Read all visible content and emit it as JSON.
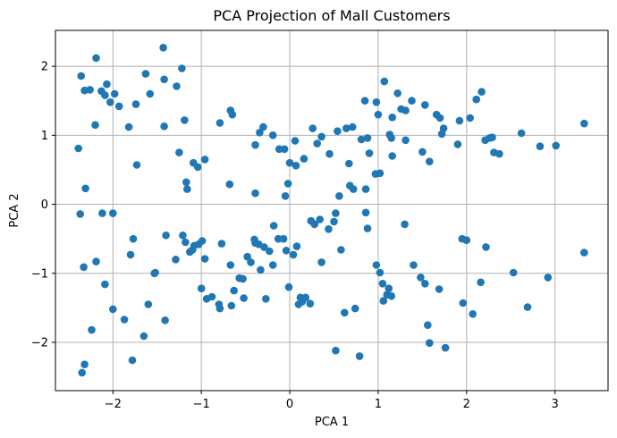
{
  "chart_data": {
    "type": "scatter",
    "title": "PCA Projection of Mall Customers",
    "xlabel": "PCA 1",
    "ylabel": "PCA 2",
    "xlim": [
      -2.65,
      3.6
    ],
    "ylim": [
      -2.7,
      2.52
    ],
    "xticks": [
      -2,
      -1,
      0,
      1,
      2,
      3
    ],
    "yticks": [
      -2,
      -1,
      0,
      1,
      2
    ],
    "xtick_labels": [
      "−2",
      "−1",
      "0",
      "1",
      "2",
      "3"
    ],
    "ytick_labels": [
      "−2",
      "−1",
      "0",
      "1",
      "2"
    ],
    "grid": true,
    "marker_color": "#1f77b4",
    "points": [
      [
        -2.36,
        1.86
      ],
      [
        -2.32,
        1.65
      ],
      [
        -2.26,
        1.66
      ],
      [
        -2.19,
        2.12
      ],
      [
        -2.13,
        1.64
      ],
      [
        -2.09,
        1.58
      ],
      [
        -2.07,
        1.74
      ],
      [
        -2.03,
        1.48
      ],
      [
        -1.98,
        1.6
      ],
      [
        -1.93,
        1.42
      ],
      [
        -1.82,
        1.12
      ],
      [
        -1.74,
        1.45
      ],
      [
        -1.63,
        1.89
      ],
      [
        -1.58,
        1.6
      ],
      [
        -1.43,
        2.27
      ],
      [
        -1.42,
        1.81
      ],
      [
        -1.28,
        1.71
      ],
      [
        -1.22,
        1.97
      ],
      [
        -2.39,
        0.81
      ],
      [
        -2.2,
        1.15
      ],
      [
        -1.73,
        0.57
      ],
      [
        -1.42,
        1.13
      ],
      [
        -1.25,
        0.75
      ],
      [
        -1.19,
        1.22
      ],
      [
        -1.17,
        0.32
      ],
      [
        -1.16,
        0.22
      ],
      [
        -1.09,
        0.6
      ],
      [
        -1.04,
        0.54
      ],
      [
        -0.96,
        0.65
      ],
      [
        -0.79,
        1.18
      ],
      [
        -0.67,
        1.36
      ],
      [
        -0.65,
        1.3
      ],
      [
        -0.68,
        0.29
      ],
      [
        -0.39,
        0.86
      ],
      [
        -0.34,
        1.04
      ],
      [
        -0.3,
        1.12
      ],
      [
        -0.39,
        0.16
      ],
      [
        -0.19,
        1.0
      ],
      [
        -0.12,
        0.8
      ],
      [
        -0.06,
        0.8
      ],
      [
        0.06,
        0.92
      ],
      [
        0.0,
        0.6
      ],
      [
        -0.02,
        0.3
      ],
      [
        0.07,
        0.56
      ],
      [
        0.16,
        0.66
      ],
      [
        -0.05,
        0.12
      ],
      [
        0.26,
        1.1
      ],
      [
        0.31,
        0.88
      ],
      [
        0.36,
        0.98
      ],
      [
        0.45,
        0.73
      ],
      [
        0.54,
        1.06
      ],
      [
        0.64,
        1.1
      ],
      [
        0.71,
        1.12
      ],
      [
        0.81,
        0.94
      ],
      [
        0.88,
        0.96
      ],
      [
        0.9,
        0.74
      ],
      [
        0.97,
        0.44
      ],
      [
        0.98,
        1.48
      ],
      [
        1.07,
        1.78
      ],
      [
        1.0,
        1.3
      ],
      [
        1.13,
        1.01
      ],
      [
        1.16,
        1.26
      ],
      [
        1.22,
        1.61
      ],
      [
        1.26,
        1.38
      ],
      [
        1.31,
        1.36
      ],
      [
        1.38,
        1.5
      ],
      [
        1.53,
        1.44
      ],
      [
        1.66,
        1.3
      ],
      [
        1.7,
        1.25
      ],
      [
        1.72,
        1.02
      ],
      [
        1.74,
        1.1
      ],
      [
        1.58,
        0.62
      ],
      [
        1.5,
        0.76
      ],
      [
        1.31,
        0.93
      ],
      [
        1.15,
        0.96
      ],
      [
        1.16,
        0.7
      ],
      [
        1.02,
        0.45
      ],
      [
        0.85,
        1.5
      ],
      [
        0.68,
        0.27
      ],
      [
        0.56,
        0.12
      ],
      [
        0.67,
        0.59
      ],
      [
        0.72,
        0.22
      ],
      [
        0.86,
        0.22
      ],
      [
        1.92,
        1.21
      ],
      [
        2.04,
        1.25
      ],
      [
        2.11,
        1.52
      ],
      [
        2.17,
        1.63
      ],
      [
        2.21,
        0.93
      ],
      [
        2.26,
        0.96
      ],
      [
        2.29,
        0.97
      ],
      [
        2.31,
        0.75
      ],
      [
        2.62,
        1.03
      ],
      [
        2.83,
        0.84
      ],
      [
        3.01,
        0.85
      ],
      [
        3.33,
        1.17
      ],
      [
        2.37,
        0.73
      ],
      [
        1.9,
        0.87
      ],
      [
        -2.37,
        -0.14
      ],
      [
        -2.31,
        0.23
      ],
      [
        -2.33,
        -0.91
      ],
      [
        -2.19,
        -0.83
      ],
      [
        -2.12,
        -0.13
      ],
      [
        -2.09,
        -1.16
      ],
      [
        -2.0,
        -0.13
      ],
      [
        -2.0,
        -1.52
      ],
      [
        -1.87,
        -1.67
      ],
      [
        -1.77,
        -0.5
      ],
      [
        -1.8,
        -0.73
      ],
      [
        -1.78,
        -2.26
      ],
      [
        -1.65,
        -1.91
      ],
      [
        -1.6,
        -1.45
      ],
      [
        -1.53,
        -1.0
      ],
      [
        -1.4,
        -0.45
      ],
      [
        -1.41,
        -1.68
      ],
      [
        -1.29,
        -0.8
      ],
      [
        -1.21,
        -0.45
      ],
      [
        -1.18,
        -0.55
      ],
      [
        -1.13,
        -0.69
      ],
      [
        -1.1,
        -0.66
      ],
      [
        -1.08,
        -0.6
      ],
      [
        -1.03,
        -0.58
      ],
      [
        -0.99,
        -0.53
      ],
      [
        -0.96,
        -0.79
      ],
      [
        -0.94,
        -1.37
      ],
      [
        -0.88,
        -1.34
      ],
      [
        -0.79,
        -1.51
      ],
      [
        -0.8,
        -1.45
      ],
      [
        -0.77,
        -0.57
      ],
      [
        -0.67,
        -0.88
      ],
      [
        -0.63,
        -1.25
      ],
      [
        -0.57,
        -1.07
      ],
      [
        -0.53,
        -1.08
      ],
      [
        -0.48,
        -0.76
      ],
      [
        -0.44,
        -0.84
      ],
      [
        -0.4,
        -0.51
      ],
      [
        -0.39,
        -0.56
      ],
      [
        -0.35,
        -0.58
      ],
      [
        -0.33,
        -0.95
      ],
      [
        -0.29,
        -0.62
      ],
      [
        -0.27,
        -1.37
      ],
      [
        -0.23,
        -0.68
      ],
      [
        -0.19,
        -0.88
      ],
      [
        -0.13,
        -0.5
      ],
      [
        -0.07,
        -0.5
      ],
      [
        -0.04,
        -0.67
      ],
      [
        -0.01,
        -1.2
      ],
      [
        0.04,
        -0.73
      ],
      [
        0.08,
        -0.61
      ],
      [
        0.1,
        -1.45
      ],
      [
        0.12,
        -1.35
      ],
      [
        0.14,
        -1.41
      ],
      [
        0.18,
        -1.35
      ],
      [
        0.23,
        -1.44
      ],
      [
        0.24,
        -0.24
      ],
      [
        0.28,
        -0.29
      ],
      [
        0.34,
        -0.22
      ],
      [
        0.36,
        -0.84
      ],
      [
        0.44,
        -0.36
      ],
      [
        0.5,
        -0.25
      ],
      [
        0.52,
        -0.13
      ],
      [
        0.58,
        -0.66
      ],
      [
        0.62,
        -1.57
      ],
      [
        0.74,
        -1.51
      ],
      [
        0.79,
        -2.2
      ],
      [
        0.86,
        -0.12
      ],
      [
        0.88,
        -0.35
      ],
      [
        0.98,
        -0.88
      ],
      [
        1.02,
        -0.99
      ],
      [
        1.05,
        -1.15
      ],
      [
        1.06,
        -1.4
      ],
      [
        1.1,
        -1.31
      ],
      [
        1.12,
        -1.22
      ],
      [
        1.15,
        -1.33
      ],
      [
        1.3,
        -0.29
      ],
      [
        1.4,
        -0.88
      ],
      [
        1.48,
        -1.06
      ],
      [
        1.53,
        -1.15
      ],
      [
        1.56,
        -1.75
      ],
      [
        1.58,
        -2.01
      ],
      [
        1.69,
        -1.23
      ],
      [
        1.76,
        -2.08
      ],
      [
        1.95,
        -0.5
      ],
      [
        1.96,
        -1.43
      ],
      [
        2.0,
        -0.52
      ],
      [
        2.07,
        -1.59
      ],
      [
        2.16,
        -1.13
      ],
      [
        2.22,
        -0.62
      ],
      [
        2.53,
        -0.99
      ],
      [
        2.69,
        -1.49
      ],
      [
        2.92,
        -1.06
      ],
      [
        3.33,
        -0.7
      ],
      [
        0.52,
        -2.12
      ],
      [
        -0.18,
        -0.31
      ],
      [
        -1.0,
        -1.22
      ],
      [
        -2.32,
        -2.32
      ],
      [
        -2.35,
        -2.44
      ],
      [
        -2.24,
        -1.82
      ],
      [
        -1.52,
        -0.99
      ],
      [
        -0.66,
        -1.47
      ],
      [
        -0.52,
        -1.36
      ]
    ]
  }
}
